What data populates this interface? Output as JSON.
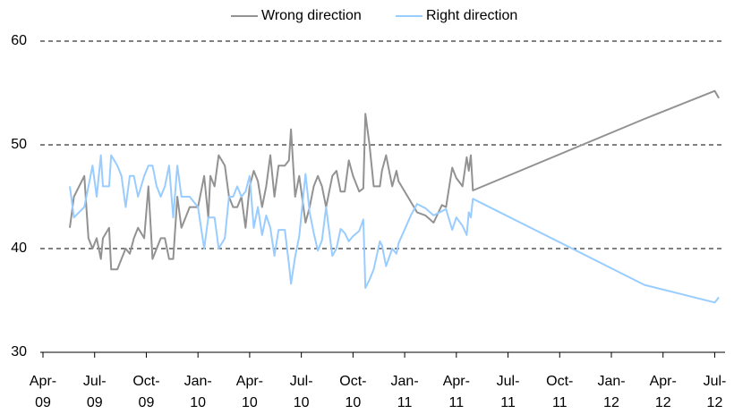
{
  "chart_data": {
    "type": "line",
    "x": [
      2009.38,
      2009.4,
      2009.45,
      2009.47,
      2009.49,
      2009.51,
      2009.53,
      2009.54,
      2009.57,
      2009.58,
      2009.61,
      2009.63,
      2009.65,
      2009.67,
      2009.69,
      2009.71,
      2009.74,
      2009.76,
      2009.78,
      2009.8,
      2009.82,
      2009.84,
      2009.86,
      2009.88,
      2009.9,
      2009.92,
      2009.94,
      2009.96,
      2010.0,
      2010.03,
      2010.05,
      2010.06,
      2010.08,
      2010.1,
      2010.13,
      2010.15,
      2010.17,
      2010.19,
      2010.21,
      2010.23,
      2010.25,
      2010.27,
      2010.29,
      2010.31,
      2010.33,
      2010.35,
      2010.37,
      2010.39,
      2010.42,
      2010.44,
      2010.45,
      2010.47,
      2010.49,
      2010.52,
      2010.54,
      2010.56,
      2010.58,
      2010.6,
      2010.62,
      2010.65,
      2010.67,
      2010.69,
      2010.71,
      2010.73,
      2010.75,
      2010.78,
      2010.8,
      2010.81,
      2010.83,
      2010.85,
      2010.88,
      2010.89,
      2010.91,
      2010.94,
      2010.96,
      2010.97,
      2011.03,
      2011.06,
      2011.1,
      2011.14,
      2011.18,
      2011.2,
      2011.23,
      2011.25,
      2011.28,
      2011.3,
      2011.31,
      2011.32,
      2011.33,
      2012.16,
      2012.5,
      2012.52
    ],
    "series": [
      {
        "name": "Wrong direction",
        "color": "#929292",
        "values": [
          42,
          45,
          47,
          41,
          40,
          41,
          39,
          41,
          42,
          38,
          38,
          39,
          40,
          39.5,
          41,
          42,
          41,
          46,
          39,
          40,
          41,
          41,
          39,
          39,
          45,
          42,
          43,
          44,
          44,
          47,
          43,
          47,
          46,
          49,
          48,
          45,
          44,
          44,
          45,
          42,
          46,
          47.5,
          46.5,
          44,
          46,
          49,
          45,
          48,
          48,
          48.5,
          51.5,
          45,
          47,
          42.5,
          44,
          46,
          47,
          46,
          44,
          47,
          47.5,
          45.5,
          45.5,
          48.5,
          47,
          45.5,
          45.8,
          53,
          50,
          46,
          46,
          47.5,
          49,
          46,
          47.5,
          46.5,
          44.5,
          43.5,
          43.2,
          42.5,
          44.2,
          44,
          47.8,
          46.8,
          46,
          48.8,
          47.5,
          49,
          45.6,
          52.5,
          55.2,
          54.5
        ]
      },
      {
        "name": "Right direction",
        "color": "#99ccff",
        "values": [
          46,
          43,
          44,
          46,
          48,
          45,
          49,
          46,
          46,
          49,
          48,
          47,
          44,
          47,
          47,
          45,
          47,
          48,
          48,
          46,
          45,
          46,
          48,
          43,
          48,
          45,
          45,
          45,
          44,
          40,
          43,
          43,
          43,
          40,
          41,
          45,
          45,
          46,
          45,
          45.5,
          47,
          42,
          44,
          41.3,
          43.2,
          42,
          39.3,
          41.8,
          41.8,
          38.5,
          36.6,
          39.2,
          41.2,
          47.2,
          43.5,
          41.5,
          39.8,
          40.8,
          44,
          39.3,
          40,
          41.9,
          41.5,
          40.7,
          41.2,
          41.7,
          42.8,
          36.2,
          37,
          38,
          40.7,
          40.3,
          38.3,
          40,
          39.5,
          40.5,
          43.2,
          44.3,
          43.9,
          43.2,
          43.6,
          43.8,
          41.8,
          43,
          42.2,
          41.3,
          43.5,
          43,
          44.8,
          36.5,
          34.8,
          35.3
        ]
      }
    ],
    "xlim": [
      2009.25,
      2012.55
    ],
    "xticks": [
      {
        "value": 2009.25,
        "label": "Apr-09"
      },
      {
        "value": 2009.5,
        "label": "Jul-09"
      },
      {
        "value": 2009.75,
        "label": "Oct-09"
      },
      {
        "value": 2010,
        "label": "Jan-10"
      },
      {
        "value": 2010.25,
        "label": "Apr-10"
      },
      {
        "value": 2010.5,
        "label": "Jul-10"
      },
      {
        "value": 2010.75,
        "label": "Oct-10"
      },
      {
        "value": 2011,
        "label": "Jan-11"
      },
      {
        "value": 2011.25,
        "label": "Apr-11"
      },
      {
        "value": 2011.5,
        "label": "Jul-11"
      },
      {
        "value": 2011.75,
        "label": "Oct-11"
      },
      {
        "value": 2012,
        "label": "Jan-12"
      },
      {
        "value": 2012.25,
        "label": "Apr-12"
      },
      {
        "value": 2012.5,
        "label": "Jul-12"
      }
    ],
    "ylim": [
      30,
      60
    ],
    "yticks": [
      30,
      40,
      50,
      60
    ],
    "grid": true,
    "legend": "top"
  }
}
